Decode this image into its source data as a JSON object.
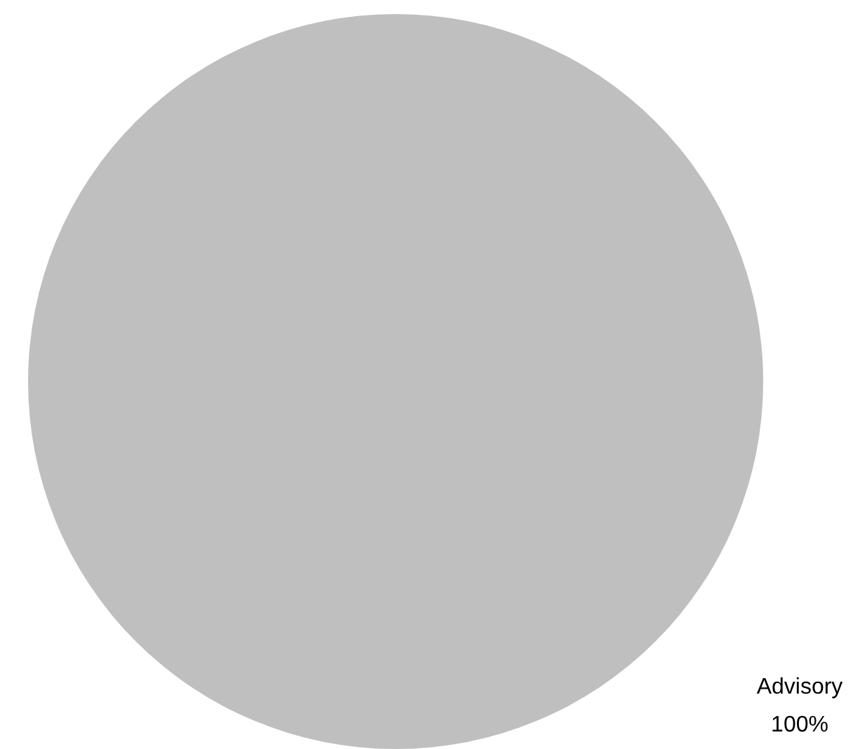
{
  "chart_data": {
    "type": "pie",
    "categories": [
      "Advisory"
    ],
    "values": [
      100
    ],
    "colors": [
      "#bfbfbf"
    ],
    "value_labels": [
      "100%"
    ],
    "legend": false
  }
}
